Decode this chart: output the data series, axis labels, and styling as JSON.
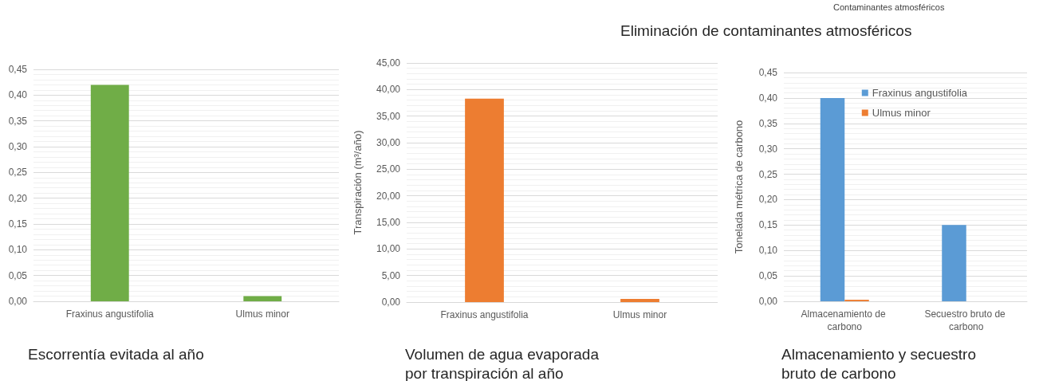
{
  "chart_data": [
    {
      "type": "bar",
      "title": "Escorrentía evitada al año",
      "categories": [
        "Fraxinus angustifolia",
        "Ulmus minor"
      ],
      "values": [
        0.42,
        0.01
      ],
      "color": "#70ad47",
      "ylim": [
        0,
        0.45
      ],
      "yticks": [
        {
          "value": 0,
          "label": "0,00"
        },
        {
          "value": 0.05,
          "label": "0,05"
        },
        {
          "value": 0.1,
          "label": "0,10"
        },
        {
          "value": 0.15,
          "label": "0,15"
        },
        {
          "value": 0.2,
          "label": "0,20"
        },
        {
          "value": 0.25,
          "label": "0,25"
        },
        {
          "value": 0.3,
          "label": "0,30"
        },
        {
          "value": 0.35,
          "label": "0,35"
        },
        {
          "value": 0.4,
          "label": "0,40"
        },
        {
          "value": 0.45,
          "label": "0,45"
        }
      ],
      "grid": true
    },
    {
      "type": "bar",
      "title": "Volumen de agua evaporada por transpiración al año",
      "ylabel": "Transpiración (m³/año)",
      "categories": [
        "Fraxinus angustifolia",
        "Ulmus minor"
      ],
      "values": [
        38.3,
        0.6
      ],
      "color": "#ed7d31",
      "ylim": [
        0,
        45
      ],
      "yticks": [
        {
          "value": 0,
          "label": "0,00"
        },
        {
          "value": 5,
          "label": "5,00"
        },
        {
          "value": 10,
          "label": "10,00"
        },
        {
          "value": 15,
          "label": "15,00"
        },
        {
          "value": 20,
          "label": "20,00"
        },
        {
          "value": 25,
          "label": "25,00"
        },
        {
          "value": 30,
          "label": "30,00"
        },
        {
          "value": 35,
          "label": "35,00"
        },
        {
          "value": 40,
          "label": "40,00"
        },
        {
          "value": 45,
          "label": "45,00"
        }
      ],
      "grid": true
    },
    {
      "type": "bar",
      "title": "Almacenamiento y secuestro bruto de carbono",
      "ylabel": "Tonelada métrica de carbono",
      "annotations": [
        "Contaminantes atmosféricos",
        "Eliminación de contaminantes atmosféricos"
      ],
      "categories": [
        "Almacenamiento de carbono",
        "Secuestro bruto de carbono"
      ],
      "series": [
        {
          "name": "Fraxinus angustifolia",
          "color": "#5b9bd5",
          "values": [
            0.4,
            0.15
          ]
        },
        {
          "name": "Ulmus minor",
          "color": "#ed7d31",
          "values": [
            0.003,
            0
          ]
        }
      ],
      "ylim": [
        0,
        0.45
      ],
      "yticks": [
        {
          "value": 0,
          "label": "0,00"
        },
        {
          "value": 0.05,
          "label": "0,05"
        },
        {
          "value": 0.1,
          "label": "0,10"
        },
        {
          "value": 0.15,
          "label": "0,15"
        },
        {
          "value": 0.2,
          "label": "0,20"
        },
        {
          "value": 0.25,
          "label": "0,25"
        },
        {
          "value": 0.3,
          "label": "0,30"
        },
        {
          "value": 0.35,
          "label": "0,35"
        },
        {
          "value": 0.4,
          "label": "0,40"
        },
        {
          "value": 0.45,
          "label": "0,45"
        }
      ],
      "grid": true,
      "legend": "top right"
    }
  ]
}
